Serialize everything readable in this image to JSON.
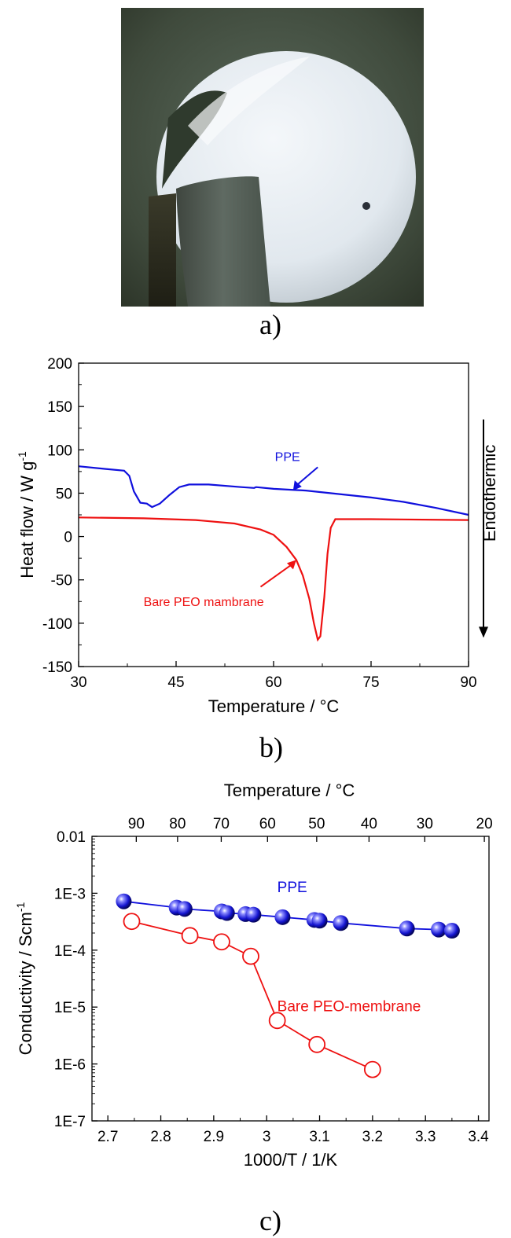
{
  "panels": {
    "a": "a)",
    "b": "b)",
    "c": "c)"
  },
  "photo": {
    "subject": "white circular membrane disc held by a dark clip"
  },
  "colors": {
    "ppe": "#1010dd",
    "bare": "#ee1111",
    "axis": "#000000"
  },
  "chart_data": [
    {
      "type": "line",
      "xlabel": "Temperature / °C",
      "ylabel": "Heat flow / W g",
      "ylabel_sup": "-1",
      "xlim": [
        30,
        90
      ],
      "ylim": [
        -150,
        200
      ],
      "xticks": [
        30,
        45,
        60,
        75,
        90
      ],
      "yticks": [
        200,
        150,
        100,
        50,
        0,
        -50,
        -100,
        -150
      ],
      "side_label": "Endothermic",
      "series": [
        {
          "name": "PPE",
          "color": "#1010dd",
          "x": [
            30,
            34,
            37,
            37.8,
            38.5,
            39.5,
            40.5,
            41.3,
            42.5,
            44,
            45.5,
            47,
            50,
            55,
            57,
            57.3,
            60,
            65,
            70,
            75,
            80,
            85,
            90
          ],
          "y": [
            81,
            78,
            76,
            70,
            52,
            39,
            38,
            34,
            38,
            48,
            57,
            60,
            60,
            57,
            56,
            57,
            55,
            53,
            49,
            45,
            40,
            33,
            25
          ]
        },
        {
          "name": "Bare PEO mambrane",
          "color": "#ee1111",
          "x": [
            30,
            40,
            48,
            54,
            58,
            60,
            62,
            63.5,
            64.5,
            65.5,
            66.2,
            66.8,
            67.2,
            67.8,
            68.3,
            68.8,
            69.5,
            75,
            90
          ],
          "y": [
            22,
            21,
            19,
            15,
            8,
            2,
            -12,
            -27,
            -45,
            -72,
            -100,
            -119,
            -115,
            -70,
            -20,
            10,
            20,
            20,
            19
          ]
        }
      ],
      "annotations": [
        {
          "text": "PPE",
          "target": [
            63,
            53
          ]
        },
        {
          "text": "Bare PEO mambrane",
          "target": [
            63.5,
            -27
          ]
        }
      ]
    },
    {
      "type": "scatter",
      "xlabel": "1000/T / 1/K",
      "ylabel": "Conductivity / Scm",
      "ylabel_sup": "-1",
      "top_xlabel": "Temperature / °C",
      "xlim": [
        2.67,
        3.42
      ],
      "xticks": [
        2.7,
        2.8,
        2.9,
        3.0,
        3.1,
        3.2,
        3.3,
        3.4
      ],
      "xtick_labels": [
        "2.7",
        "2.8",
        "2.9",
        "3",
        "3.1",
        "3.2",
        "3.3",
        "3.4"
      ],
      "top_xticks": [
        90,
        80,
        70,
        60,
        50,
        40,
        30,
        20
      ],
      "yscale": "log",
      "ylim": [
        1e-07,
        0.01
      ],
      "yticks": [
        0.01,
        0.001,
        0.0001,
        1e-05,
        1e-06,
        1e-07
      ],
      "ytick_labels": [
        "0.01",
        "1E-3",
        "1E-4",
        "1E-5",
        "1E-6",
        "1E-7"
      ],
      "series": [
        {
          "name": "PPE",
          "color": "#1010dd",
          "marker": "filled-sphere",
          "x": [
            2.73,
            2.83,
            2.845,
            2.915,
            2.925,
            2.96,
            2.975,
            3.03,
            3.09,
            3.1,
            3.14,
            3.265,
            3.325,
            3.35
          ],
          "y": [
            0.00072,
            0.00056,
            0.00053,
            0.00048,
            0.00045,
            0.00043,
            0.00042,
            0.00038,
            0.00034,
            0.00033,
            0.0003,
            0.00024,
            0.00023,
            0.00022
          ]
        },
        {
          "name": "Bare PEO-membrane",
          "color": "#ee1111",
          "marker": "open-circle",
          "x": [
            2.745,
            2.855,
            2.915,
            2.97,
            3.02,
            3.095,
            3.2
          ],
          "y": [
            0.00032,
            0.00018,
            0.00014,
            7.8e-05,
            5.8e-06,
            2.2e-06,
            8e-07
          ]
        }
      ]
    }
  ]
}
